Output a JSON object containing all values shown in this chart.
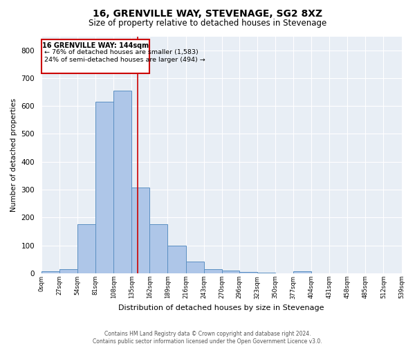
{
  "title": "16, GRENVILLE WAY, STEVENAGE, SG2 8XZ",
  "subtitle": "Size of property relative to detached houses in Stevenage",
  "xlabel": "Distribution of detached houses by size in Stevenage",
  "ylabel": "Number of detached properties",
  "bin_edges": [
    0,
    27,
    54,
    81,
    108,
    135,
    162,
    189,
    216,
    243,
    270,
    296,
    323,
    350,
    377,
    404,
    431,
    458,
    485,
    512,
    539
  ],
  "bar_heights": [
    8,
    15,
    175,
    615,
    655,
    308,
    175,
    100,
    42,
    15,
    10,
    5,
    2,
    0,
    7,
    0,
    0,
    0,
    0,
    0
  ],
  "bar_color": "#aec6e8",
  "bar_edge_color": "#5a8fc2",
  "vline_x": 144,
  "vline_color": "#cc0000",
  "annotation_line1": "16 GRENVILLE WAY: 144sqm",
  "annotation_line2": "← 76% of detached houses are smaller (1,583)",
  "annotation_line3": "24% of semi-detached houses are larger (494) →",
  "annotation_box_color": "#cc0000",
  "ylim": [
    0,
    850
  ],
  "yticks": [
    0,
    100,
    200,
    300,
    400,
    500,
    600,
    700,
    800
  ],
  "bg_color": "#e8eef5",
  "footer_line1": "Contains HM Land Registry data © Crown copyright and database right 2024.",
  "footer_line2": "Contains public sector information licensed under the Open Government Licence v3.0."
}
